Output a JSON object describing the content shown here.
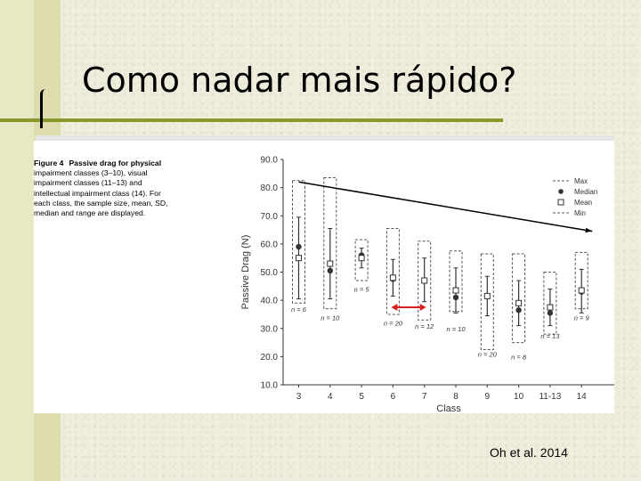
{
  "slide": {
    "title": "Como nadar mais rápido?",
    "citation": "Oh et al. 2014"
  },
  "figure": {
    "label": "Figure 4",
    "caption_title": "Passive drag for physical",
    "caption_body": "impairment classes (3–10), visual impairment classes (11–13) and intellectual impairment class (14). For each class, the sample size, mean, SD, median and range are displayed."
  },
  "chart_data": {
    "type": "box",
    "xlabel": "Class",
    "ylabel": "Passive Drag (N)",
    "ylim": [
      10,
      90
    ],
    "yticks": [
      "10.0",
      "20.0",
      "30.0",
      "40.0",
      "50.0",
      "60.0",
      "70.0",
      "80.0",
      "90.0"
    ],
    "categories": [
      "3",
      "4",
      "5",
      "6",
      "7",
      "8",
      "9",
      "10",
      "11-13",
      "14"
    ],
    "max": [
      82.5,
      83.5,
      61.5,
      65.5,
      61,
      57.5,
      56.5,
      56.5,
      50,
      57
    ],
    "min": [
      39,
      37,
      47,
      35,
      33,
      36,
      22.5,
      25,
      28,
      37
    ],
    "mean": [
      55,
      53,
      55,
      48,
      47,
      43.5,
      41.5,
      39,
      37.5,
      43.5
    ],
    "median": [
      59,
      50.5,
      56,
      47.5,
      47,
      41,
      41.5,
      36.5,
      35.5,
      43
    ],
    "sd_upper": [
      69.5,
      65.5,
      58.5,
      54.5,
      55,
      51.5,
      48.5,
      47,
      44,
      51
    ],
    "sd_lower": [
      40.5,
      40.5,
      51.5,
      41.5,
      39.5,
      35.5,
      34.5,
      31,
      31,
      35.5
    ],
    "sample_labels": [
      "n = 6",
      "n = 10",
      "n = 5",
      "n = 20",
      "n = 12",
      "n = 10",
      "n = 20",
      "n = 8",
      "n = 13",
      "n = 9"
    ],
    "sample_label_y": [
      36,
      33,
      43,
      31,
      30,
      29,
      20,
      19,
      26.5,
      33
    ],
    "legend": {
      "position": "top-right",
      "entries": [
        "Max",
        "Median",
        "Mean",
        "Min"
      ]
    },
    "annotations": {
      "trend_arrow": {
        "from": [
          "3",
          82
        ],
        "to": [
          "14",
          64.5
        ],
        "color": "#000000"
      },
      "range_arrow": {
        "from": [
          "6",
          37.5
        ],
        "to": [
          "7",
          37.5
        ],
        "color": "#d42020"
      }
    },
    "colors": {
      "marker": "#333333",
      "box_dash": "#555555",
      "arrow_red": "#d42020"
    }
  }
}
